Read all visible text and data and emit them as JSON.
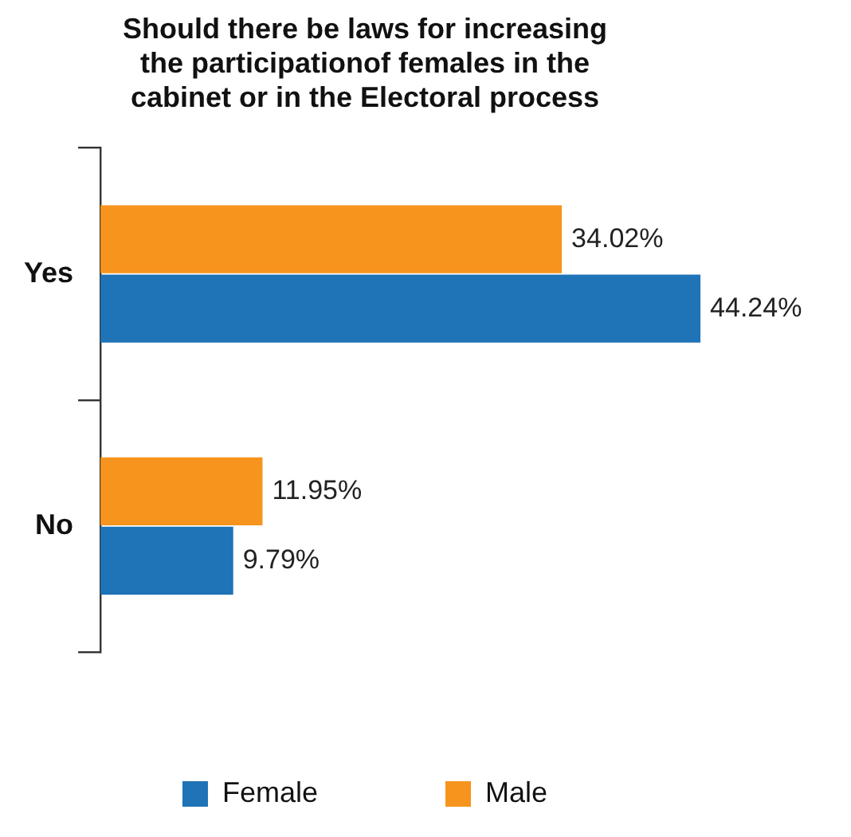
{
  "chart_data": {
    "type": "bar",
    "orientation": "horizontal",
    "title": "Should there be laws for increasing\nthe participationof females in the\ncabinet or in the Electoral process",
    "categories": [
      "Yes",
      "No"
    ],
    "series": [
      {
        "name": "Male",
        "color": "#f7941d",
        "values": [
          34.02,
          11.95
        ],
        "value_labels": [
          "34.02%",
          "11.95%"
        ]
      },
      {
        "name": "Female",
        "color": "#1f73b7",
        "values": [
          44.24,
          9.79
        ],
        "value_labels": [
          "44.24%",
          "9.79%"
        ]
      }
    ],
    "tick_labels": "y",
    "grid": false,
    "legend": "bottom"
  }
}
